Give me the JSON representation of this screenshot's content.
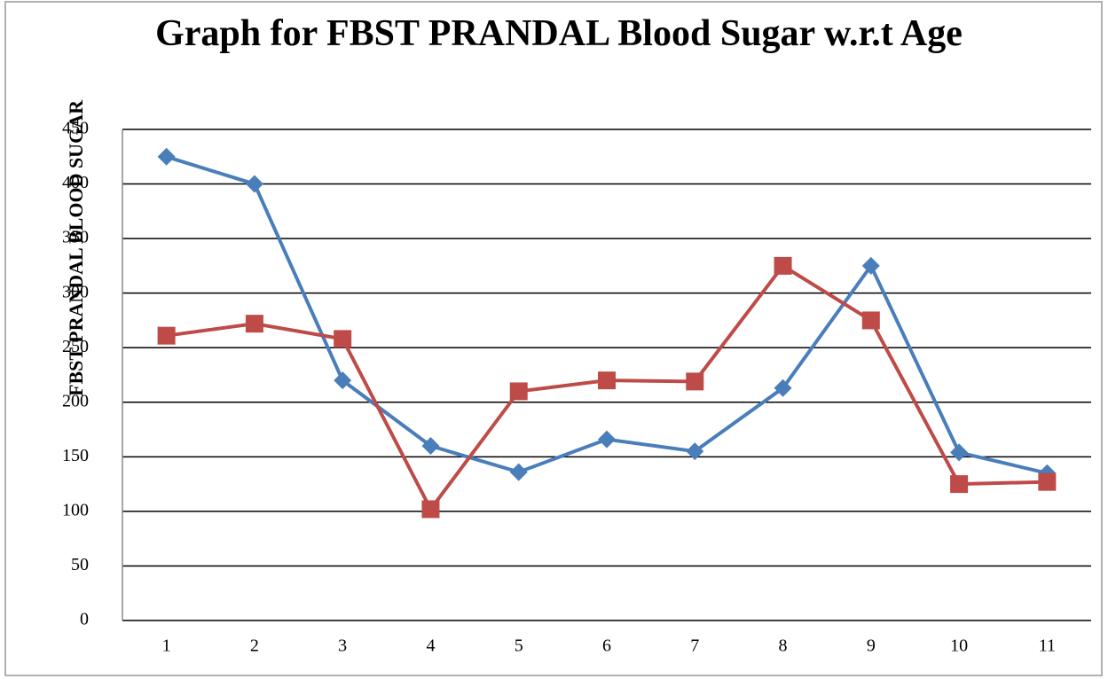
{
  "chart_data": {
    "type": "line",
    "title": "Graph for FBST PRANDAL Blood Sugar w.r.t Age",
    "y_label": "FBST PRANDAL BLOOD SUGAR",
    "categories": [
      "1",
      "2",
      "3",
      "4",
      "5",
      "6",
      "7",
      "8",
      "9",
      "10",
      "11"
    ],
    "series": [
      {
        "color": "#4a7ebb",
        "marker": "diamond",
        "values": [
          425,
          400,
          220,
          160,
          136,
          166,
          155,
          213,
          325,
          154,
          135
        ]
      },
      {
        "color": "#be4b48",
        "marker": "square",
        "values": [
          261,
          272,
          258,
          102,
          210,
          220,
          219,
          325,
          275,
          125,
          127
        ]
      }
    ],
    "ylim": [
      0,
      450
    ],
    "yticks": [
      0,
      50,
      100,
      150,
      200,
      250,
      300,
      350,
      400,
      450
    ],
    "grid": true
  }
}
